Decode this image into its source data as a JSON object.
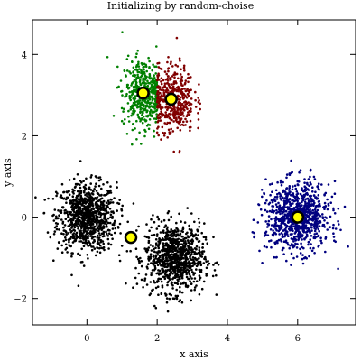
{
  "chart_data": {
    "type": "scatter",
    "title": "Initializing by random-choise",
    "xlabel": "x axis",
    "ylabel": "y axis",
    "xlim": [
      -1.55,
      7.65
    ],
    "ylim": [
      -2.65,
      4.85
    ],
    "x_ticks": [
      0,
      2,
      4,
      6
    ],
    "y_ticks": [
      -2,
      0,
      2,
      4
    ],
    "x_tick_labels": [
      "0",
      "2",
      "4",
      "6"
    ],
    "y_tick_labels": [
      "−2",
      "0",
      "2",
      "4"
    ],
    "grid": false,
    "legend": "none",
    "series": [
      {
        "color": "#000000",
        "marker": "dot",
        "cluster_center": [
          0.0,
          0.0
        ],
        "cluster_spread": [
          0.42,
          0.42
        ],
        "approx_points": 900
      },
      {
        "color": "#000000",
        "marker": "dot",
        "cluster_center": [
          2.5,
          -1.0
        ],
        "cluster_spread": [
          0.42,
          0.42
        ],
        "approx_points": 900
      },
      {
        "color": "#008000",
        "marker": "dot",
        "cluster_center": [
          1.6,
          3.05
        ],
        "cluster_spread": [
          0.3,
          0.42
        ],
        "approx_points": 450
      },
      {
        "color": "#800000",
        "marker": "dot",
        "cluster_center": [
          2.45,
          2.9
        ],
        "cluster_spread": [
          0.3,
          0.42
        ],
        "approx_points": 450
      },
      {
        "color": "#000080",
        "marker": "dot",
        "cluster_center": [
          6.0,
          0.0
        ],
        "cluster_spread": [
          0.45,
          0.42
        ],
        "approx_points": 900
      }
    ],
    "centroids": {
      "x": [
        1.6,
        2.4,
        1.25,
        6.0
      ],
      "y": [
        3.05,
        2.9,
        -0.5,
        0.0
      ],
      "fill": "#ffff00",
      "stroke": "#000000"
    }
  }
}
